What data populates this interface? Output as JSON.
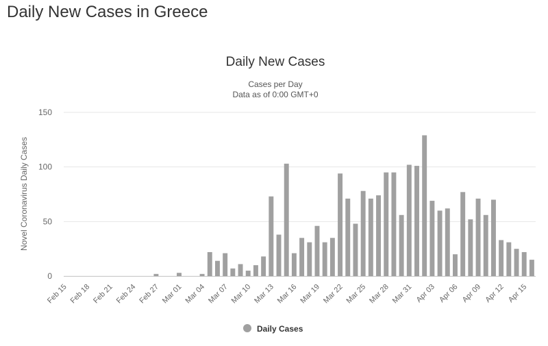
{
  "page": {
    "heading": "Daily New Cases in Greece"
  },
  "chart_data": {
    "type": "bar",
    "title": "Daily New Cases",
    "subtitle_lines": [
      "Cases per Day",
      "Data as of 0:00 GMT+0"
    ],
    "xlabel": "",
    "ylabel": "Novel Coronavirus Daily Cases",
    "ylim": [
      0,
      150
    ],
    "yticks": [
      0,
      50,
      100,
      150
    ],
    "grid": true,
    "legend_position": "bottom-center",
    "colors": {
      "bar": "#a0a0a0",
      "grid": "#e6e6e6",
      "axis_text": "#666666"
    },
    "categories": [
      "Feb 15",
      "Feb 16",
      "Feb 17",
      "Feb 18",
      "Feb 19",
      "Feb 20",
      "Feb 21",
      "Feb 22",
      "Feb 23",
      "Feb 24",
      "Feb 25",
      "Feb 26",
      "Feb 27",
      "Feb 28",
      "Feb 29",
      "Mar 01",
      "Mar 02",
      "Mar 03",
      "Mar 04",
      "Mar 05",
      "Mar 06",
      "Mar 07",
      "Mar 08",
      "Mar 09",
      "Mar 10",
      "Mar 11",
      "Mar 12",
      "Mar 13",
      "Mar 14",
      "Mar 15",
      "Mar 16",
      "Mar 17",
      "Mar 18",
      "Mar 19",
      "Mar 20",
      "Mar 21",
      "Mar 22",
      "Mar 23",
      "Mar 24",
      "Mar 25",
      "Mar 26",
      "Mar 27",
      "Mar 28",
      "Mar 29",
      "Mar 30",
      "Mar 31",
      "Apr 01",
      "Apr 02",
      "Apr 03",
      "Apr 04",
      "Apr 05",
      "Apr 06",
      "Apr 07",
      "Apr 08",
      "Apr 09",
      "Apr 10",
      "Apr 11",
      "Apr 12",
      "Apr 13",
      "Apr 14",
      "Apr 15",
      "Apr 16"
    ],
    "tick_labels": [
      "Feb 15",
      "Feb 18",
      "Feb 21",
      "Feb 24",
      "Feb 27",
      "Mar 01",
      "Mar 04",
      "Mar 07",
      "Mar 10",
      "Mar 13",
      "Mar 16",
      "Mar 19",
      "Mar 22",
      "Mar 25",
      "Mar 28",
      "Mar 31",
      "Apr 03",
      "Apr 06",
      "Apr 09",
      "Apr 12",
      "Apr 15"
    ],
    "series": [
      {
        "name": "Daily Cases",
        "values": [
          0,
          0,
          0,
          0,
          0,
          0,
          0,
          0,
          0,
          0,
          0,
          0,
          2,
          0,
          0,
          3,
          0,
          0,
          2,
          22,
          14,
          21,
          7,
          11,
          5,
          10,
          18,
          73,
          38,
          103,
          21,
          35,
          31,
          46,
          31,
          35,
          94,
          71,
          48,
          78,
          71,
          74,
          95,
          95,
          56,
          102,
          101,
          129,
          69,
          60,
          62,
          20,
          77,
          52,
          71,
          56,
          70,
          33,
          31,
          25,
          22,
          15
        ]
      }
    ]
  }
}
